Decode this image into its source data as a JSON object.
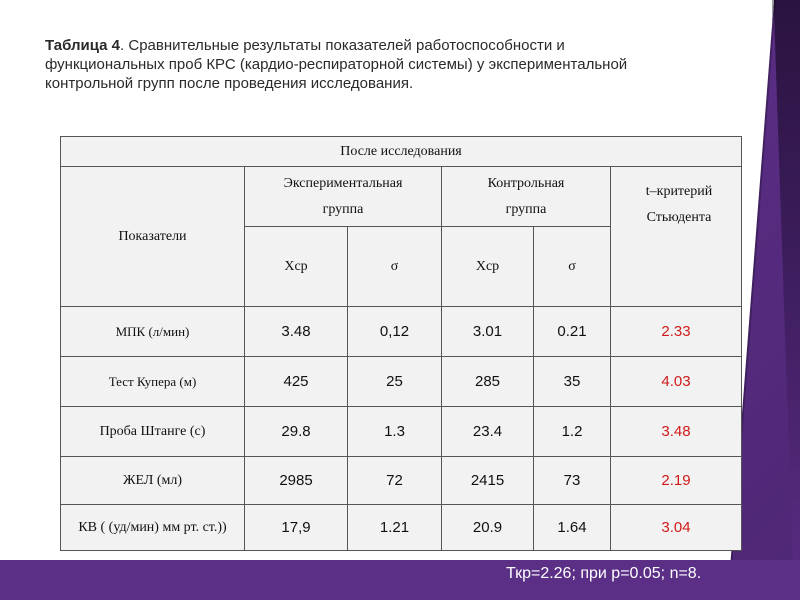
{
  "title": {
    "bold": "Таблица 4",
    "text": ". Сравнительные  результаты показателей работоспособности и функциональных проб КРС (кардио-респираторной системы) у экспериментальной контрольной групп после проведения исследования."
  },
  "table": {
    "after_study": "После исследования",
    "indicators": "Показатели",
    "experimental_group": "Экспериментальная группа",
    "control_group": "Контрольная группа",
    "t_criterion": "t–критерий Стьюдента",
    "xcp": "Xср",
    "sigma": "σ",
    "rows": [
      {
        "label": "МПК (л/мин)",
        "exp_x": "3.48",
        "exp_s": "0,12",
        "ctl_x": "3.01",
        "ctl_s": "0.21",
        "t": "2.33"
      },
      {
        "label": "Тест Купера (м)",
        "exp_x": "425",
        "exp_s": "25",
        "ctl_x": "285",
        "ctl_s": "35",
        "t": "4.03"
      },
      {
        "label": "Проба Штанге (с)",
        "exp_x": "29.8",
        "exp_s": "1.3",
        "ctl_x": "23.4",
        "ctl_s": "1.2",
        "t": "3.48"
      },
      {
        "label": "ЖЕЛ (мл)",
        "exp_x": "2985",
        "exp_s": "72",
        "ctl_x": "2415",
        "ctl_s": "73",
        "t": "2.19"
      },
      {
        "label": "КВ ( (уд/мин) мм рт. ст.))",
        "exp_x": "17,9",
        "exp_s": "1.21",
        "ctl_x": "20.9",
        "ctl_s": "1.64",
        "t": "3.04"
      }
    ]
  },
  "footer": "Ткр=2.26; при р=0.05; n=8.",
  "colors": {
    "background": "#5b2f86",
    "t_value": "#d11a1a"
  }
}
